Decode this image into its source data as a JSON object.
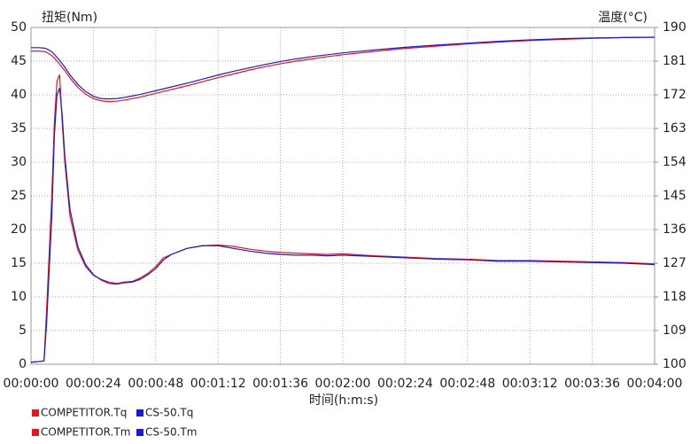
{
  "chart_data": {
    "type": "line",
    "ylabel": "扭矩(Nm)",
    "y2label": "温度(°C)",
    "xlabel": "时间(h:m:s)",
    "x": [
      0,
      3,
      5,
      6,
      8,
      9,
      10,
      11,
      12,
      13,
      15,
      18,
      21,
      24,
      27,
      30,
      33,
      36,
      39,
      42,
      45,
      48,
      51,
      54,
      60,
      66,
      72,
      78,
      84,
      90,
      96,
      102,
      108,
      114,
      120,
      132,
      144,
      156,
      168,
      180,
      192,
      204,
      216,
      228,
      240
    ],
    "xlim": [
      0,
      240
    ],
    "xticks": [
      {
        "value": 0,
        "label": "00:00:00"
      },
      {
        "value": 24,
        "label": "00:00:24"
      },
      {
        "value": 48,
        "label": "00:00:48"
      },
      {
        "value": 72,
        "label": "00:01:12"
      },
      {
        "value": 96,
        "label": "00:01:36"
      },
      {
        "value": 120,
        "label": "00:02:00"
      },
      {
        "value": 144,
        "label": "00:02:24"
      },
      {
        "value": 168,
        "label": "00:02:48"
      },
      {
        "value": 192,
        "label": "00:03:12"
      },
      {
        "value": 216,
        "label": "00:03:36"
      },
      {
        "value": 240,
        "label": "00:04:00"
      }
    ],
    "ylim": [
      0,
      50
    ],
    "yticks": [
      0,
      5,
      10,
      15,
      20,
      25,
      30,
      35,
      40,
      45,
      50
    ],
    "y2lim": [
      100,
      190
    ],
    "y2ticks": [
      100,
      109,
      118,
      127,
      136,
      145,
      154,
      163,
      172,
      181,
      190
    ],
    "grid": true,
    "series": [
      {
        "name": "COMPETITOR.Tq",
        "color": "#e8141b",
        "values": [
          0.3,
          0.4,
          0.5,
          8,
          25,
          36,
          42,
          43,
          36,
          30,
          22,
          17,
          14.5,
          13.2,
          12.6,
          12.2,
          12,
          12.2,
          12.3,
          12.8,
          13.5,
          14.5,
          15.8,
          16.3,
          17.2,
          17.6,
          17.7,
          17.5,
          17.1,
          16.8,
          16.6,
          16.5,
          16.4,
          16.3,
          16.4,
          16.1,
          15.9,
          15.7,
          15.6,
          15.4,
          15.4,
          15.3,
          15.2,
          15.1,
          14.9
        ]
      },
      {
        "name": "CS-50.Tq",
        "color": "#1a1ad6",
        "values": [
          0.3,
          0.4,
          0.5,
          6,
          22,
          34,
          40,
          41,
          37,
          31,
          23,
          17.5,
          14.8,
          13.3,
          12.5,
          12,
          11.9,
          12.1,
          12.2,
          12.6,
          13.3,
          14.2,
          15.5,
          16.3,
          17.2,
          17.6,
          17.6,
          17.2,
          16.8,
          16.5,
          16.3,
          16.2,
          16.2,
          16.1,
          16.2,
          16,
          15.8,
          15.6,
          15.5,
          15.3,
          15.3,
          15.2,
          15.1,
          15,
          14.8
        ]
      },
      {
        "name": "COMPETITOR.Tm",
        "color": "#e8141b",
        "axis": "y2",
        "values": [
          183.7,
          183.7,
          183.6,
          183.4,
          182.5,
          181.8,
          181,
          180.2,
          179.3,
          178.5,
          176.5,
          174,
          172.2,
          171,
          170.4,
          170.2,
          170.3,
          170.6,
          171,
          171.4,
          171.9,
          172.4,
          172.9,
          173.4,
          174.4,
          175.5,
          176.6,
          177.6,
          178.6,
          179.5,
          180.3,
          181,
          181.6,
          182.2,
          182.7,
          183.6,
          184.4,
          185,
          185.6,
          186.1,
          186.5,
          186.8,
          187.1,
          187.3,
          187.4
        ]
      },
      {
        "name": "CS-50.Tm",
        "color": "#1a1ad6",
        "axis": "y2",
        "values": [
          184.6,
          184.6,
          184.5,
          184.3,
          183.5,
          182.8,
          182,
          181.2,
          180.3,
          179.4,
          177.3,
          174.8,
          172.9,
          171.6,
          171,
          170.9,
          171,
          171.3,
          171.7,
          172.1,
          172.6,
          173.1,
          173.6,
          174.1,
          175.1,
          176.2,
          177.3,
          178.3,
          179.2,
          180.1,
          180.9,
          181.6,
          182.2,
          182.7,
          183.2,
          184,
          184.7,
          185.3,
          185.8,
          186.3,
          186.7,
          187,
          187.2,
          187.3,
          187.4
        ]
      }
    ]
  }
}
